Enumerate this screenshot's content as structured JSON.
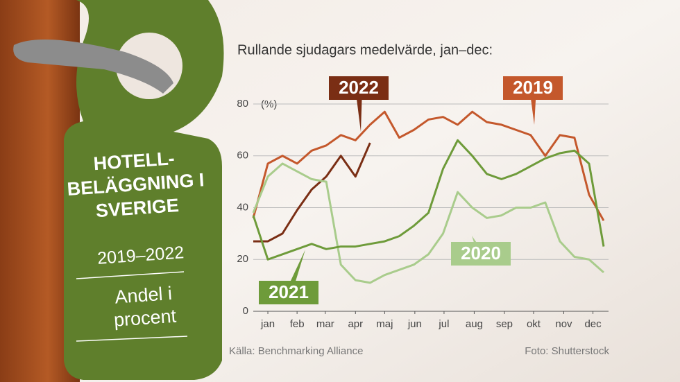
{
  "chart_data": {
    "type": "line",
    "title": "Rullande sjudagars medelvärde, jan–dec:",
    "y_unit": "(%)",
    "tag": {
      "title": "HOTELL-BELÄGGNING I SVERIGE",
      "years": "2019–2022",
      "subtitle": "Andel i procent"
    },
    "source": "Källa: Benchmarking Alliance",
    "credit": "Foto: Shutterstock",
    "x": [
      0,
      15,
      30,
      45,
      60,
      75,
      90,
      105,
      120,
      135,
      150,
      165,
      180,
      195,
      210,
      225,
      240,
      255,
      270,
      285,
      300,
      315,
      330,
      345,
      360
    ],
    "xlim": [
      0,
      365
    ],
    "xticks": [
      {
        "value": 15,
        "label": "jan"
      },
      {
        "value": 45,
        "label": "feb"
      },
      {
        "value": 74,
        "label": "mar"
      },
      {
        "value": 105,
        "label": "apr"
      },
      {
        "value": 135,
        "label": "maj"
      },
      {
        "value": 166,
        "label": "jun"
      },
      {
        "value": 196,
        "label": "jul"
      },
      {
        "value": 227,
        "label": "aug"
      },
      {
        "value": 258,
        "label": "sep"
      },
      {
        "value": 288,
        "label": "okt"
      },
      {
        "value": 319,
        "label": "nov"
      },
      {
        "value": 349,
        "label": "dec"
      }
    ],
    "ylim": [
      0,
      80
    ],
    "yticks": [
      0,
      20,
      40,
      60,
      80
    ],
    "grid": true,
    "series": [
      {
        "name": "2022",
        "color": "#7a2e14",
        "values": [
          27,
          27,
          30,
          39,
          47,
          52,
          60,
          52,
          65,
          null,
          null,
          null,
          null,
          null,
          null,
          null,
          null,
          null,
          null,
          null,
          null,
          null,
          null,
          null,
          null
        ]
      },
      {
        "name": "2019",
        "color": "#c4582c",
        "values": [
          36,
          57,
          60,
          57,
          62,
          64,
          68,
          66,
          72,
          77,
          67,
          70,
          74,
          75,
          72,
          77,
          73,
          72,
          70,
          68,
          60,
          68,
          67,
          45,
          35
        ]
      },
      {
        "name": "2020",
        "color": "#a9cc8c",
        "values": [
          38,
          52,
          57,
          54,
          51,
          50,
          18,
          12,
          11,
          14,
          16,
          18,
          22,
          30,
          46,
          40,
          36,
          37,
          40,
          40,
          42,
          27,
          21,
          20,
          15
        ]
      },
      {
        "name": "2021",
        "color": "#6e9b3a",
        "values": [
          37,
          20,
          22,
          24,
          26,
          24,
          25,
          25,
          26,
          27,
          29,
          33,
          38,
          55,
          66,
          60,
          53,
          51,
          53,
          56,
          59,
          61,
          62,
          57,
          25
        ]
      }
    ]
  }
}
